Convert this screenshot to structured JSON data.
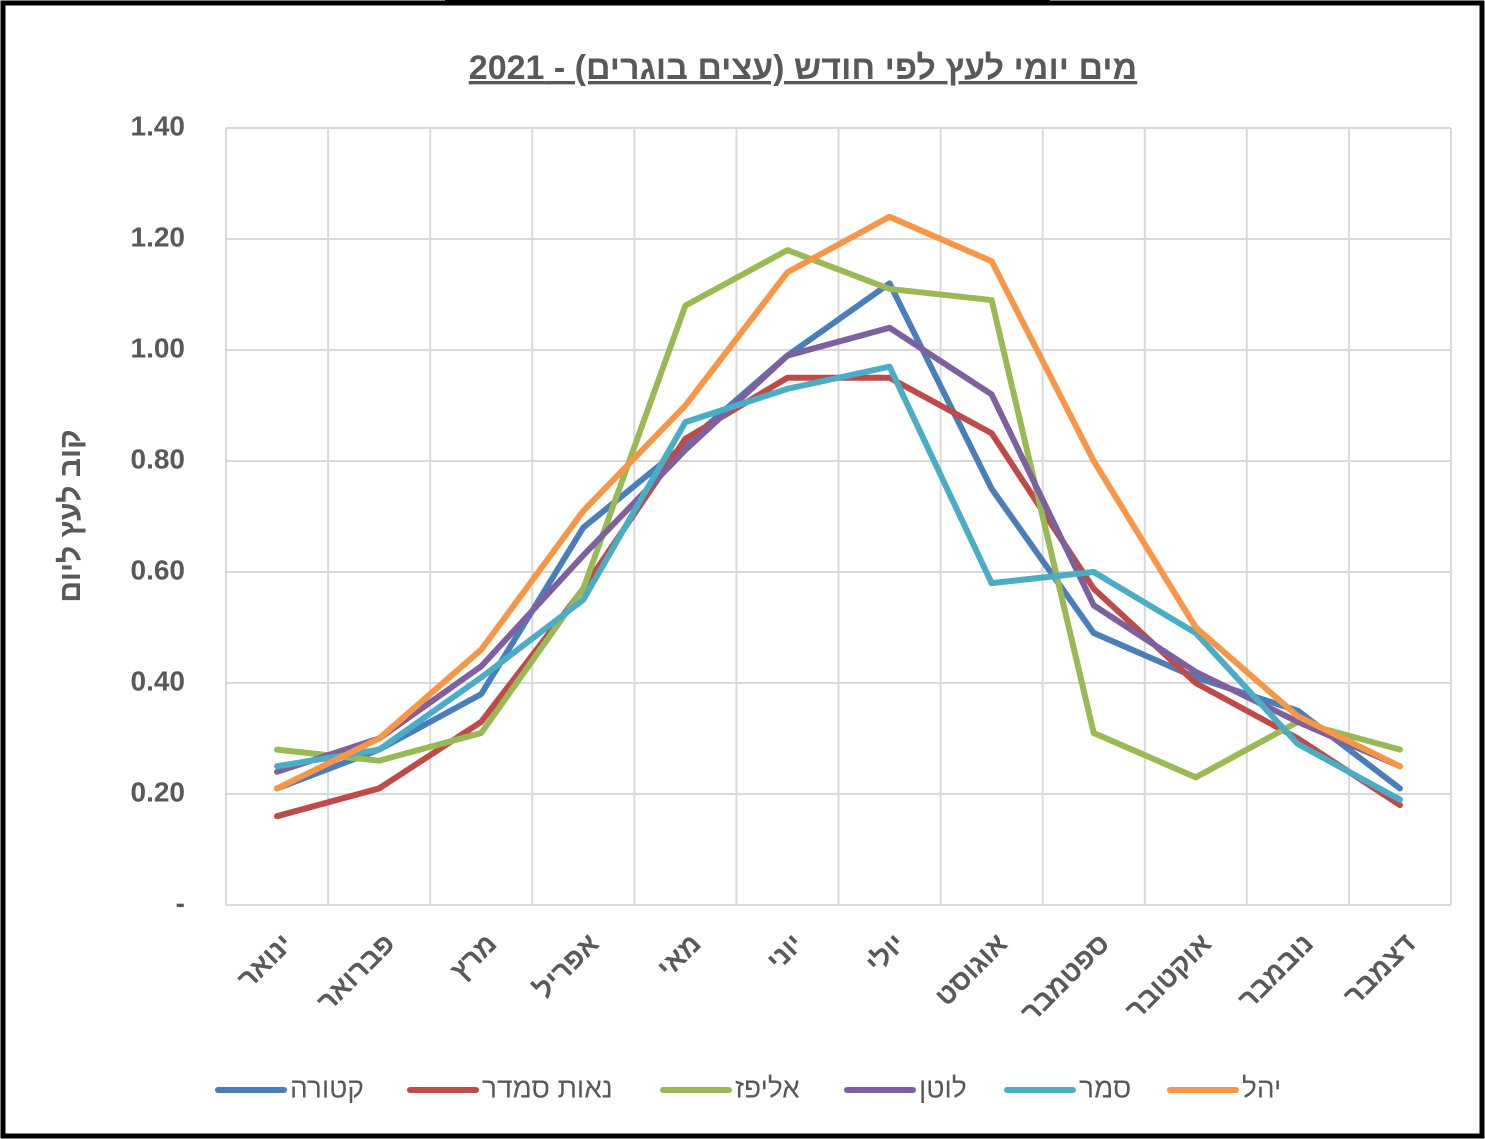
{
  "chart_data": {
    "type": "line",
    "title": "מים יומי לעץ לפי חודש (עצים בוגרים) - 2021",
    "y_label": "קוב לעץ ליום",
    "categories": [
      "ינואר",
      "פברואר",
      "מרץ",
      "אפריל",
      "מאי",
      "יוני",
      "יולי",
      "אוגוסט",
      "ספטמבר",
      "אוקטובר",
      "נובמבר",
      "דצמבר"
    ],
    "series": [
      {
        "name": "קטורה",
        "color": "#4a7ebb",
        "values": [
          0.21,
          0.28,
          0.38,
          0.68,
          0.83,
          0.99,
          1.12,
          0.75,
          0.49,
          0.41,
          0.35,
          0.21
        ]
      },
      {
        "name": "נאות סמדר",
        "color": "#be4b48",
        "values": [
          0.16,
          0.21,
          0.33,
          0.57,
          0.84,
          0.95,
          0.95,
          0.85,
          0.57,
          0.4,
          0.3,
          0.18
        ]
      },
      {
        "name": "אליפז",
        "color": "#98b954",
        "values": [
          0.28,
          0.26,
          0.31,
          0.57,
          1.08,
          1.18,
          1.11,
          1.09,
          0.31,
          0.23,
          0.33,
          0.28
        ]
      },
      {
        "name": "לוטן",
        "color": "#7d60a0",
        "values": [
          0.24,
          0.3,
          0.43,
          0.63,
          0.82,
          0.99,
          1.04,
          0.92,
          0.54,
          0.42,
          0.33,
          0.25
        ]
      },
      {
        "name": "סמר",
        "color": "#4bacc6",
        "values": [
          0.25,
          0.28,
          0.41,
          0.55,
          0.87,
          0.93,
          0.97,
          0.58,
          0.6,
          0.49,
          0.29,
          0.19
        ]
      },
      {
        "name": "יהל",
        "color": "#f79646",
        "values": [
          0.21,
          0.3,
          0.46,
          0.71,
          0.9,
          1.14,
          1.24,
          1.16,
          0.8,
          0.5,
          0.34,
          0.25
        ]
      }
    ],
    "ylim": [
      0,
      1.4
    ],
    "yticks": [
      {
        "value": 0,
        "label": "-"
      },
      {
        "value": 0.2,
        "label": "0.20"
      },
      {
        "value": 0.4,
        "label": "0.40"
      },
      {
        "value": 0.6,
        "label": "0.60"
      },
      {
        "value": 0.8,
        "label": "0.80"
      },
      {
        "value": 1.0,
        "label": "1.00"
      },
      {
        "value": 1.2,
        "label": "1.20"
      },
      {
        "value": 1.4,
        "label": "1.40"
      }
    ],
    "grid": true,
    "legend": "bottom"
  }
}
